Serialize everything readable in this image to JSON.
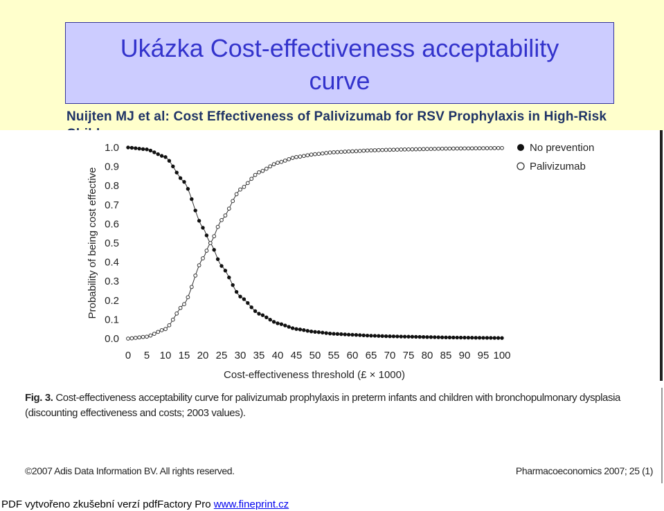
{
  "slide": {
    "title_line1": "Ukázka Cost-effectiveness acceptability",
    "title_line2": "curve",
    "subtitle": "Nuijten MJ et al: Cost Effectiveness of Palivizumab  for RSV Prophylaxis in High-Risk Children."
  },
  "figure": {
    "caption_label": "Fig. 3.",
    "caption_text": "Cost-effectiveness acceptability curve for palivizumab prophylaxis in preterm infants and children with bronchopulmonary dysplasia (discounting effectiveness and costs; 2003 values).",
    "copyright": "©2007 Adis Data Information BV. All rights reserved.",
    "journal": "Pharmacoeconomics 2007; 25 (1)"
  },
  "footer": {
    "text": "PDF vytvořeno zkušební verzí pdfFactory Pro ",
    "link": "www.fineprint.cz"
  },
  "colors": {
    "title_text": "#3333cc",
    "title_box": "#ccccff",
    "slide_background": "#ffffcc",
    "subtitle_text": "#1f3366"
  },
  "chart_data": {
    "type": "line",
    "xlabel": "Cost-effectiveness threshold (£ × 1000)",
    "ylabel": "Probability of being cost effective",
    "xlim": [
      0,
      100
    ],
    "ylim": [
      0,
      1
    ],
    "x_ticks": [
      "0",
      "5",
      "10",
      "15",
      "20",
      "25",
      "30",
      "35",
      "40",
      "45",
      "50",
      "55",
      "60",
      "65",
      "70",
      "75",
      "80",
      "85",
      "90",
      "95",
      "100"
    ],
    "y_ticks": [
      "0.0",
      "0.1",
      "0.2",
      "0.3",
      "0.4",
      "0.5",
      "0.6",
      "0.7",
      "0.8",
      "0.9",
      "1.0"
    ],
    "grid": false,
    "legend_position": "top-right",
    "x": [
      0,
      5,
      10,
      15,
      20,
      22,
      25,
      30,
      35,
      40,
      45,
      50,
      55,
      60,
      65,
      70,
      75,
      80,
      85,
      90,
      95,
      100
    ],
    "series": [
      {
        "name": "No prevention",
        "marker": "filled-circle",
        "values": [
          1.0,
          0.99,
          0.95,
          0.82,
          0.58,
          0.5,
          0.38,
          0.22,
          0.13,
          0.08,
          0.05,
          0.035,
          0.025,
          0.02,
          0.015,
          0.012,
          0.01,
          0.008,
          0.006,
          0.005,
          0.004,
          0.003
        ]
      },
      {
        "name": "Palivizumab",
        "marker": "open-circle",
        "values": [
          0.0,
          0.01,
          0.05,
          0.18,
          0.42,
          0.5,
          0.62,
          0.78,
          0.87,
          0.92,
          0.95,
          0.965,
          0.975,
          0.98,
          0.985,
          0.988,
          0.99,
          0.992,
          0.994,
          0.995,
          0.996,
          0.997
        ]
      }
    ]
  }
}
